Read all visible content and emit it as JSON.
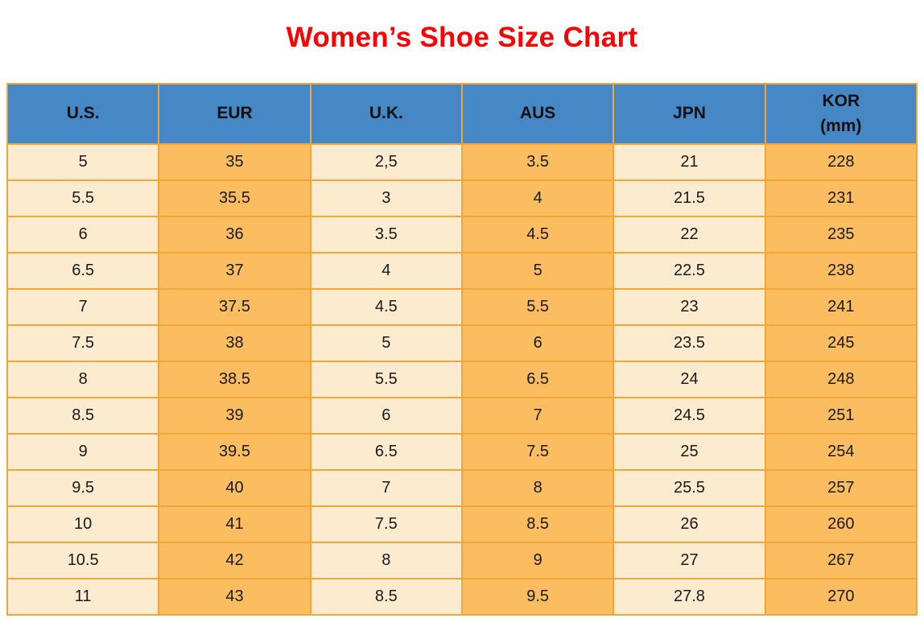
{
  "title": "Women’s Shoe Size Chart",
  "colors": {
    "title_red": "#fe0000",
    "header_blue": "#4687c6",
    "cell_light": "#fdebd0",
    "cell_orange": "#fbbd5f",
    "border_orange": "#f2a637"
  },
  "table": {
    "columns": [
      "U.S.",
      "EUR",
      "U.K.",
      "AUS",
      "JPN",
      "KOR\n(mm)"
    ],
    "rows": [
      [
        "5",
        "35",
        "2,5",
        "3.5",
        "21",
        "228"
      ],
      [
        "5.5",
        "35.5",
        "3",
        "4",
        "21.5",
        "231"
      ],
      [
        "6",
        "36",
        "3.5",
        "4.5",
        "22",
        "235"
      ],
      [
        "6.5",
        "37",
        "4",
        "5",
        "22.5",
        "238"
      ],
      [
        "7",
        "37.5",
        "4.5",
        "5.5",
        "23",
        "241"
      ],
      [
        "7.5",
        "38",
        "5",
        "6",
        "23.5",
        "245"
      ],
      [
        "8",
        "38.5",
        "5.5",
        "6.5",
        "24",
        "248"
      ],
      [
        "8.5",
        "39",
        "6",
        "7",
        "24.5",
        "251"
      ],
      [
        "9",
        "39.5",
        "6.5",
        "7.5",
        "25",
        "254"
      ],
      [
        "9.5",
        "40",
        "7",
        "8",
        "25.5",
        "257"
      ],
      [
        "10",
        "41",
        "7.5",
        "8.5",
        "26",
        "260"
      ],
      [
        "10.5",
        "42",
        "8",
        "9",
        "27",
        "267"
      ],
      [
        "11",
        "43",
        "8.5",
        "9.5",
        "27.8",
        "270"
      ]
    ]
  },
  "chart_data": {
    "type": "table",
    "title": "Women’s Shoe Size Chart",
    "columns": [
      "U.S.",
      "EUR",
      "U.K.",
      "AUS",
      "JPN",
      "KOR (mm)"
    ],
    "rows": [
      [
        "5",
        "35",
        "2,5",
        "3.5",
        "21",
        "228"
      ],
      [
        "5.5",
        "35.5",
        "3",
        "4",
        "21.5",
        "231"
      ],
      [
        "6",
        "36",
        "3.5",
        "4.5",
        "22",
        "235"
      ],
      [
        "6.5",
        "37",
        "4",
        "5",
        "22.5",
        "238"
      ],
      [
        "7",
        "37.5",
        "4.5",
        "5.5",
        "23",
        "241"
      ],
      [
        "7.5",
        "38",
        "5",
        "6",
        "23.5",
        "245"
      ],
      [
        "8",
        "38.5",
        "5.5",
        "6.5",
        "24",
        "248"
      ],
      [
        "8.5",
        "39",
        "6",
        "7",
        "24.5",
        "251"
      ],
      [
        "9",
        "39.5",
        "6.5",
        "7.5",
        "25",
        "254"
      ],
      [
        "9.5",
        "40",
        "7",
        "8",
        "25.5",
        "257"
      ],
      [
        "10",
        "41",
        "7.5",
        "8.5",
        "26",
        "260"
      ],
      [
        "10.5",
        "42",
        "8",
        "9",
        "27",
        "267"
      ],
      [
        "11",
        "43",
        "8.5",
        "9.5",
        "27.8",
        "270"
      ]
    ],
    "layout": {
      "header_background": "#4687c6",
      "column_fill_pattern": [
        "light",
        "orange",
        "light",
        "orange",
        "light",
        "orange"
      ],
      "gridlines": true
    }
  }
}
